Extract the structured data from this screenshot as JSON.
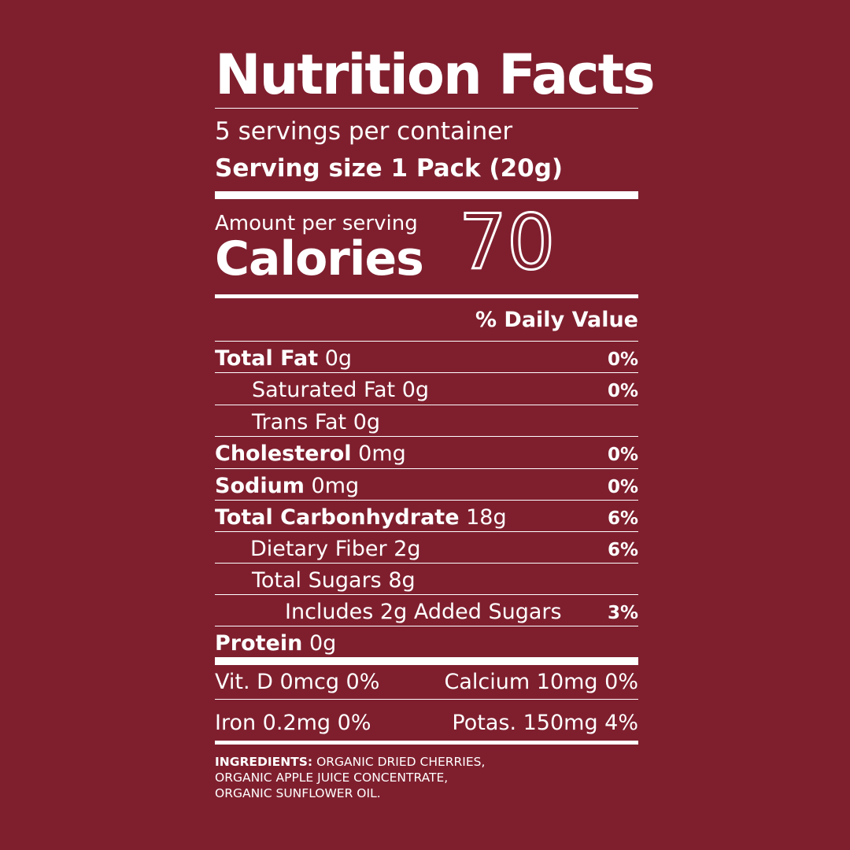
{
  "label": {
    "title": "Nutrition Facts",
    "servings_per_container": "5 servings per container",
    "serving_size": "Serving size 1 Pack (20g)",
    "amount_per_serving": "Amount per serving",
    "calories_label": "Calories",
    "calories_value": "70",
    "daily_value_header": "% Daily Value",
    "rows": [
      {
        "name": "Total Fat",
        "amount": "0g",
        "pct": "0%"
      },
      {
        "name": "Saturated Fat",
        "amount": "0g",
        "pct": "0%"
      },
      {
        "name": "Trans Fat",
        "amount": "0g",
        "pct": ""
      },
      {
        "name": "Cholesterol",
        "amount": "0mg",
        "pct": "0%"
      },
      {
        "name": "Sodium",
        "amount": "0mg",
        "pct": "0%"
      },
      {
        "name": "Total Carbonhydrate",
        "amount": "18g",
        "pct": "6%"
      },
      {
        "name": "Dietary Fiber",
        "amount": "2g",
        "pct": "6%"
      },
      {
        "name": "Total Sugars",
        "amount": "8g",
        "pct": ""
      },
      {
        "name": "Includes 2g Added Sugars",
        "amount": "",
        "pct": "3%"
      },
      {
        "name": "Protein",
        "amount": "0g",
        "pct": ""
      }
    ],
    "vitamins": {
      "vit_d": "Vit. D 0mcg 0%",
      "calcium": "Calcium 10mg 0%",
      "iron": "Iron 0.2mg 0%",
      "potassium": "Potas. 150mg 4%"
    },
    "ingredients_label": "INGREDIENTS:",
    "ingredients_line1": "ORGANIC DRIED CHERRIES,",
    "ingredients_line2": "ORGANIC APPLE JUICE CONCENTRATE,",
    "ingredients_line3": "ORGANIC SUNFLOWER OIL."
  },
  "colors": {
    "background": "#7f1f2e",
    "text": "#ffffff"
  }
}
